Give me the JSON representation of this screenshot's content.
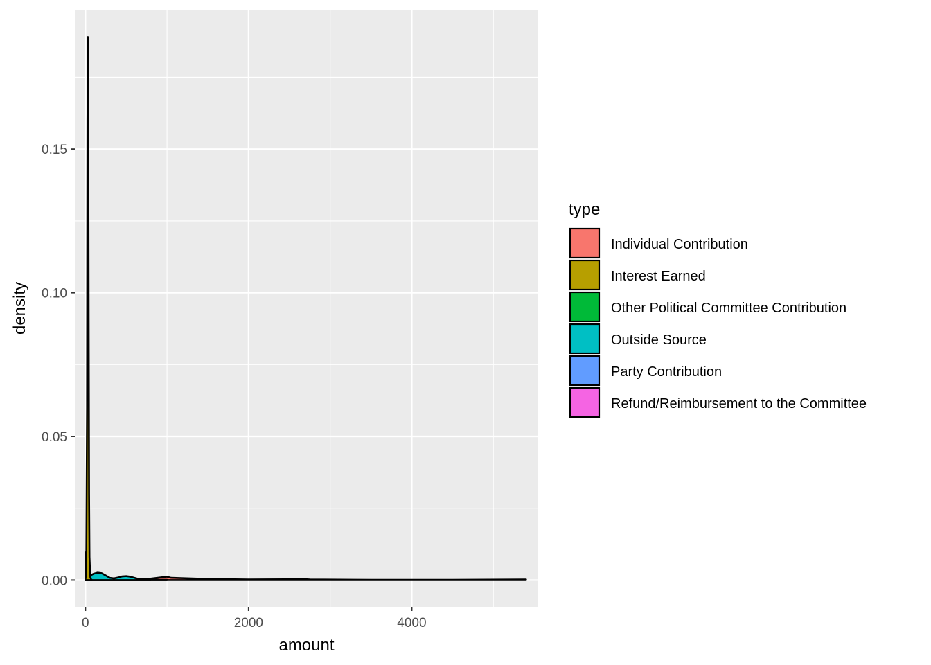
{
  "chart_data": {
    "type": "area",
    "kind": "density",
    "title": "",
    "xlabel": "amount",
    "ylabel": "density",
    "xlim": [
      -130,
      5550
    ],
    "ylim": [
      -0.0093,
      0.1985
    ],
    "x_ticks": [
      0,
      2000,
      4000
    ],
    "y_ticks": [
      0.0,
      0.05,
      0.1,
      0.15
    ],
    "x_tick_labels": [
      "0",
      "2000",
      "4000"
    ],
    "y_tick_labels": [
      "0.00",
      "0.05",
      "0.10",
      "0.15"
    ],
    "grid": true,
    "legend": {
      "title": "type",
      "position": "right",
      "entries": [
        {
          "name": "Individual Contribution",
          "color": "#F8766D"
        },
        {
          "name": "Interest Earned",
          "color": "#B79F00"
        },
        {
          "name": "Other Political Committee Contribution",
          "color": "#00BA38"
        },
        {
          "name": "Outside Source",
          "color": "#00BFC4"
        },
        {
          "name": "Party Contribution",
          "color": "#619CFF"
        },
        {
          "name": "Refund/Reimbursement to the Committee",
          "color": "#F564E3"
        }
      ]
    },
    "series": [
      {
        "name": "Individual Contribution",
        "color": "#F8766D",
        "x": [
          0,
          50,
          200,
          500,
          800,
          1000,
          1050,
          1500,
          2000,
          2700,
          2750,
          3500,
          4500,
          5400
        ],
        "y": [
          0.0002,
          0.0004,
          0.0006,
          0.0004,
          0.0005,
          0.0012,
          0.0008,
          0.0004,
          0.0002,
          0.0003,
          0.0002,
          0.0001,
          0.0001,
          0.0002
        ]
      },
      {
        "name": "Interest Earned",
        "color": "#B79F00",
        "x": [
          0,
          10,
          20,
          25,
          30,
          35,
          40,
          45,
          50,
          60,
          70,
          80
        ],
        "y": [
          0.0,
          0.003,
          0.06,
          0.16,
          0.189,
          0.16,
          0.09,
          0.03,
          0.008,
          0.001,
          0.0002,
          0.0
        ]
      },
      {
        "name": "Other Political Committee Contribution",
        "color": "#00BA38",
        "x": [
          0,
          5,
          10,
          15,
          20,
          30,
          50
        ],
        "y": [
          0.003,
          0.009,
          0.01,
          0.008,
          0.005,
          0.001,
          0.0
        ]
      },
      {
        "name": "Outside Source",
        "color": "#00BFC4",
        "x": [
          0,
          50,
          100,
          150,
          200,
          250,
          300,
          350,
          400,
          450,
          500,
          550,
          600,
          650,
          700,
          800,
          1000
        ],
        "y": [
          0.0005,
          0.0015,
          0.0022,
          0.0026,
          0.0024,
          0.0016,
          0.0008,
          0.0006,
          0.0009,
          0.0013,
          0.0014,
          0.0012,
          0.0008,
          0.0004,
          0.0002,
          0.0001,
          0.0
        ]
      },
      {
        "name": "Party Contribution",
        "color": "#619CFF",
        "x": [
          0,
          100,
          300,
          500,
          700,
          1000
        ],
        "y": [
          0.0001,
          0.0002,
          0.0003,
          0.0003,
          0.0002,
          0.0001
        ]
      },
      {
        "name": "Refund/Reimbursement to the Committee",
        "color": "#F564E3",
        "x": [
          0,
          100,
          300,
          500,
          800
        ],
        "y": [
          0.0001,
          0.0002,
          0.0002,
          0.0001,
          0.0
        ]
      }
    ]
  }
}
